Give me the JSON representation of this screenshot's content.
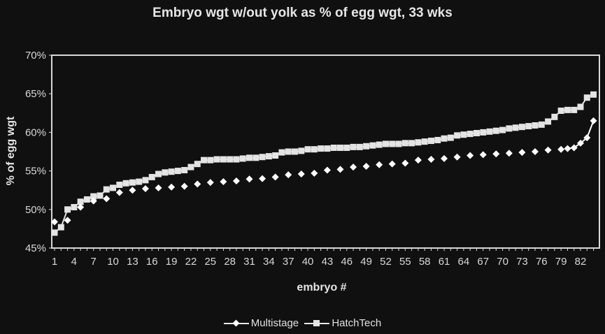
{
  "chart_data": {
    "type": "line",
    "title": "Embryo wgt w/out yolk as % of egg wgt, 33 wks",
    "xlabel": "embryo #",
    "ylabel": "% of egg wgt",
    "ylim": [
      0.45,
      0.7
    ],
    "yticks": [
      "45%",
      "50%",
      "55%",
      "60%",
      "65%",
      "70%"
    ],
    "xtick_labels": [
      "1",
      "4",
      "7",
      "10",
      "13",
      "16",
      "19",
      "22",
      "25",
      "28",
      "31",
      "34",
      "37",
      "40",
      "43",
      "46",
      "49",
      "52",
      "55",
      "58",
      "61",
      "64",
      "67",
      "70",
      "73",
      "76",
      "79",
      "82"
    ],
    "n_points": 84,
    "grid": false,
    "legend_position": "bottom",
    "series": [
      {
        "name": "Multistage",
        "marker": "diamond",
        "color": "#ffffff",
        "values": [
          48.4,
          48.4,
          48.6,
          49.4,
          50.3,
          50.7,
          51.1,
          51.3,
          51.4,
          51.8,
          52.2,
          52.4,
          52.5,
          52.6,
          52.7,
          52.8,
          52.8,
          52.85,
          52.9,
          53.0,
          53.0,
          53.2,
          53.3,
          53.4,
          53.5,
          53.55,
          53.6,
          53.65,
          53.7,
          53.85,
          53.95,
          54.0,
          54.0,
          54.1,
          54.2,
          54.4,
          54.5,
          54.55,
          54.6,
          54.65,
          54.7,
          54.95,
          55.1,
          55.15,
          55.2,
          55.35,
          55.5,
          55.5,
          55.6,
          55.7,
          55.8,
          55.85,
          55.9,
          55.95,
          56.0,
          56.2,
          56.4,
          56.45,
          56.5,
          56.55,
          56.6,
          56.7,
          56.8,
          56.9,
          57.0,
          57.05,
          57.1,
          57.15,
          57.2,
          57.25,
          57.3,
          57.35,
          57.4,
          57.45,
          57.5,
          57.6,
          57.7,
          57.75,
          57.8,
          57.9,
          58.0,
          58.6,
          59.3,
          61.5
        ]
      },
      {
        "name": "HatchTech",
        "marker": "square",
        "color": "#e4e4e4",
        "values": [
          47.0,
          47.7,
          50.0,
          50.3,
          51.0,
          51.3,
          51.7,
          51.8,
          52.6,
          52.8,
          53.2,
          53.4,
          53.5,
          53.6,
          53.8,
          54.2,
          54.6,
          54.8,
          54.9,
          55.0,
          55.1,
          55.5,
          55.9,
          56.4,
          56.4,
          56.5,
          56.5,
          56.5,
          56.5,
          56.6,
          56.7,
          56.7,
          56.8,
          56.9,
          57.0,
          57.4,
          57.5,
          57.5,
          57.6,
          57.8,
          57.8,
          57.9,
          57.9,
          58.0,
          58.0,
          58.0,
          58.1,
          58.1,
          58.2,
          58.3,
          58.4,
          58.5,
          58.5,
          58.5,
          58.6,
          58.6,
          58.7,
          58.8,
          58.9,
          59.0,
          59.2,
          59.3,
          59.6,
          59.7,
          59.8,
          59.9,
          60.0,
          60.1,
          60.2,
          60.3,
          60.5,
          60.6,
          60.7,
          60.8,
          60.9,
          61.0,
          61.4,
          62.0,
          62.8,
          62.9,
          62.9,
          63.3,
          64.5,
          64.9
        ]
      }
    ]
  },
  "legend": {
    "items": [
      {
        "label": "Multistage"
      },
      {
        "label": "HatchTech"
      }
    ]
  }
}
